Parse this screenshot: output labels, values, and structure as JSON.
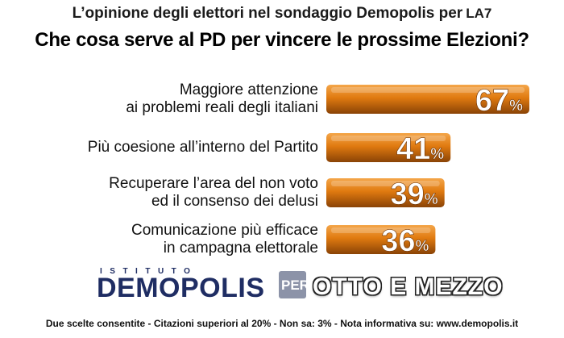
{
  "header": {
    "subtitle": "L’opinione degli elettori nel sondaggio Demopolis per",
    "broadcaster": "LA7"
  },
  "chart_data": {
    "type": "bar",
    "title": "Che cosa serve al PD per vincere le prossime Elezioni?",
    "categories": [
      [
        "Maggiore attenzione",
        "ai problemi reali degli italiani"
      ],
      [
        "Più coesione all’interno del Partito"
      ],
      [
        "Recuperare l’area del non voto",
        "ed il consenso dei delusi"
      ],
      [
        "Comunicazione  più efficace",
        "in campagna elettorale"
      ]
    ],
    "values": [
      67,
      41,
      39,
      36
    ],
    "unit": "%",
    "bar_color": "#e07a10",
    "bar_highlight": "#f4a64a",
    "bar_shadow": "#8a4306"
  },
  "logos": {
    "istituto": "ISTITUTO",
    "demopolis": "DEMOPOLIS",
    "per": "PER",
    "program": "OTTO E MEZZO"
  },
  "footer": {
    "note": "Due scelte consentite - Citazioni superiori al 20% - Non sa: 3% - Nota informativa su: www.demopolis.it"
  }
}
